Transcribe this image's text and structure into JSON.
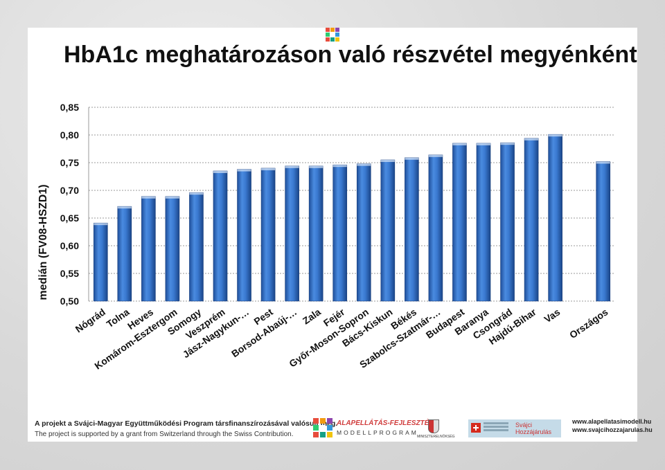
{
  "title": "HbA1c meghatározáson való részvétel megyénként",
  "chart_data": {
    "type": "bar",
    "ylabel": "medián (FV08-HSZD1)",
    "xlabel": "",
    "ylim": [
      0.5,
      0.85
    ],
    "yticks": [
      "0,50",
      "0,55",
      "0,60",
      "0,65",
      "0,70",
      "0,75",
      "0,80",
      "0,85"
    ],
    "ytick_values": [
      0.5,
      0.55,
      0.6,
      0.65,
      0.7,
      0.75,
      0.8,
      0.85
    ],
    "grid": true,
    "categories": [
      "Nógrád",
      "Tolna",
      "Heves",
      "Komárom-Esztergom",
      "Somogy",
      "Veszprém",
      "Jász-Nagykun-…",
      "Pest",
      "Borsod-Abaúj-…",
      "Zala",
      "Fejér",
      "Győr-Moson-Sopron",
      "Bács-Kiskun",
      "Békés",
      "Szabolcs-Szatmár-…",
      "Budapest",
      "Baranya",
      "Csongrád",
      "Hajdú-Bihar",
      "Vas",
      "",
      "Országos"
    ],
    "values": [
      0.641,
      0.671,
      0.689,
      0.689,
      0.696,
      0.735,
      0.738,
      0.74,
      0.744,
      0.744,
      0.746,
      0.748,
      0.755,
      0.759,
      0.764,
      0.785,
      0.785,
      0.786,
      0.794,
      0.801,
      null,
      0.752
    ],
    "bar_color": "#2f6fc4"
  },
  "footer": {
    "line1": "A projekt a Svájci-Magyar Együttműködési Program társfinanszírozásával valósult meg.",
    "line2": "The project is supported by a grant from Switzerland through the Swiss Contribution.",
    "program_title": "ALAPELLÁTÁS-FEJLESZTÉSI",
    "program_sub": "MODELLPROGRAM",
    "ministry": "MINISZTERELNÖKSÉG",
    "swiss_brand_1": "Svájci",
    "swiss_brand_2": "Hozzájárulás",
    "web1": "www.alapellatasimodell.hu",
    "web2": "www.svajcihozzajarulas.hu"
  }
}
